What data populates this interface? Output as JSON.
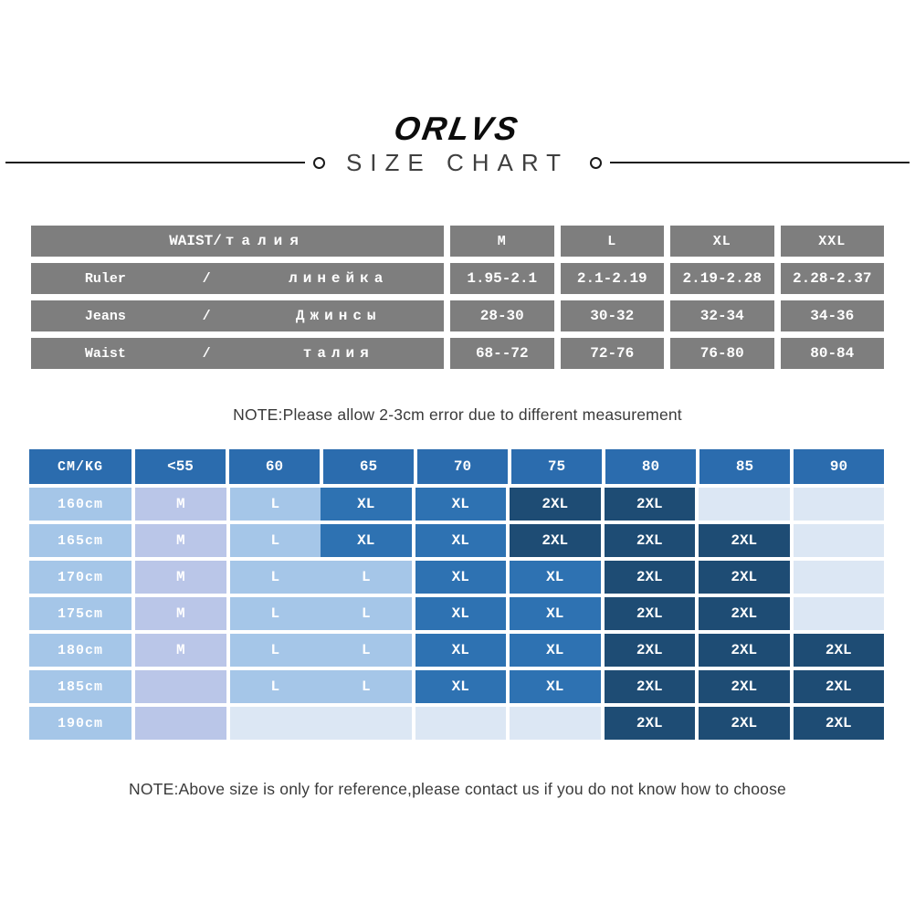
{
  "header": {
    "logo": "ORLVS",
    "title": "SIZE CHART"
  },
  "notes": {
    "measurement": "NOTE:Please allow 2-3cm error due to different measurement",
    "reference": "NOTE:Above size is only for reference,please contact us if you do not know how to choose"
  },
  "colors": {
    "header_blue": "#2B6CAE",
    "xl_blue": "#2E72B2",
    "dark_navy": "#1E4C74",
    "light_blue": "#A5C6E8",
    "lavender": "#BAC6E8",
    "empty_blue": "#DCE7F4",
    "gray": "#7E7E7E"
  },
  "chart_data": [
    {
      "type": "table",
      "name": "waist-size-table",
      "title_en": "WAIST/",
      "title_ru": "талия",
      "columns": [
        "M",
        "L",
        "XL",
        "XXL"
      ],
      "rows": [
        {
          "en": "Ruler",
          "slash": "/",
          "ru": "линейка",
          "values": [
            "1.95-2.1",
            "2.1-2.19",
            "2.19-2.28",
            "2.28-2.37"
          ]
        },
        {
          "en": "Jeans",
          "slash": "/",
          "ru": "Джинсы",
          "values": [
            "28-30",
            "30-32",
            "32-34",
            "34-36"
          ]
        },
        {
          "en": "Waist",
          "slash": "/",
          "ru": "талия",
          "values": [
            "68--72",
            "72-76",
            "76-80",
            "80-84"
          ]
        }
      ]
    },
    {
      "type": "heatmap",
      "name": "height-weight-size-matrix",
      "corner_label": "CM/KG",
      "columns": [
        "<55",
        "60",
        "65",
        "70",
        "75",
        "80",
        "85",
        "90"
      ],
      "color_keys": {
        "m": "lavender",
        "l": "light_blue",
        "xl": "xl_blue",
        "xxl": "dark_navy",
        "e": "empty_blue"
      },
      "rows": [
        {
          "label": "160cm",
          "cells": [
            {
              "v": "M",
              "k": "m"
            },
            {
              "v": "L",
              "k": "l",
              "ng": true
            },
            {
              "v": "XL",
              "k": "xl"
            },
            {
              "v": "XL",
              "k": "xl"
            },
            {
              "v": "2XL",
              "k": "xxl"
            },
            {
              "v": "2XL",
              "k": "xxl"
            },
            {
              "v": "",
              "k": "e"
            },
            {
              "v": "",
              "k": "e"
            }
          ]
        },
        {
          "label": "165cm",
          "cells": [
            {
              "v": "M",
              "k": "m"
            },
            {
              "v": "L",
              "k": "l",
              "ng": true
            },
            {
              "v": "XL",
              "k": "xl"
            },
            {
              "v": "XL",
              "k": "xl"
            },
            {
              "v": "2XL",
              "k": "xxl"
            },
            {
              "v": "2XL",
              "k": "xxl"
            },
            {
              "v": "2XL",
              "k": "xxl"
            },
            {
              "v": "",
              "k": "e"
            }
          ]
        },
        {
          "label": "170cm",
          "cells": [
            {
              "v": "M",
              "k": "m"
            },
            {
              "v": "L",
              "k": "l",
              "ng": true
            },
            {
              "v": "L",
              "k": "l"
            },
            {
              "v": "XL",
              "k": "xl"
            },
            {
              "v": "XL",
              "k": "xl"
            },
            {
              "v": "2XL",
              "k": "xxl"
            },
            {
              "v": "2XL",
              "k": "xxl"
            },
            {
              "v": "",
              "k": "e"
            }
          ]
        },
        {
          "label": "175cm",
          "cells": [
            {
              "v": "M",
              "k": "m"
            },
            {
              "v": "L",
              "k": "l",
              "ng": true
            },
            {
              "v": "L",
              "k": "l"
            },
            {
              "v": "XL",
              "k": "xl"
            },
            {
              "v": "XL",
              "k": "xl"
            },
            {
              "v": "2XL",
              "k": "xxl"
            },
            {
              "v": "2XL",
              "k": "xxl"
            },
            {
              "v": "",
              "k": "e"
            }
          ]
        },
        {
          "label": "180cm",
          "cells": [
            {
              "v": "M",
              "k": "m"
            },
            {
              "v": "L",
              "k": "l",
              "ng": true
            },
            {
              "v": "L",
              "k": "l"
            },
            {
              "v": "XL",
              "k": "xl"
            },
            {
              "v": "XL",
              "k": "xl"
            },
            {
              "v": "2XL",
              "k": "xxl"
            },
            {
              "v": "2XL",
              "k": "xxl"
            },
            {
              "v": "2XL",
              "k": "xxl"
            }
          ]
        },
        {
          "label": "185cm",
          "cells": [
            {
              "v": "",
              "k": "m"
            },
            {
              "v": "L",
              "k": "l",
              "ng": true
            },
            {
              "v": "L",
              "k": "l"
            },
            {
              "v": "XL",
              "k": "xl"
            },
            {
              "v": "XL",
              "k": "xl"
            },
            {
              "v": "2XL",
              "k": "xxl"
            },
            {
              "v": "2XL",
              "k": "xxl"
            },
            {
              "v": "2XL",
              "k": "xxl"
            }
          ]
        },
        {
          "label": "190cm",
          "cells": [
            {
              "v": "",
              "k": "m"
            },
            {
              "v": "",
              "k": "e",
              "ng": true
            },
            {
              "v": "",
              "k": "e"
            },
            {
              "v": "",
              "k": "e"
            },
            {
              "v": "",
              "k": "e"
            },
            {
              "v": "2XL",
              "k": "xxl"
            },
            {
              "v": "2XL",
              "k": "xxl"
            },
            {
              "v": "2XL",
              "k": "xxl"
            }
          ]
        }
      ]
    }
  ]
}
